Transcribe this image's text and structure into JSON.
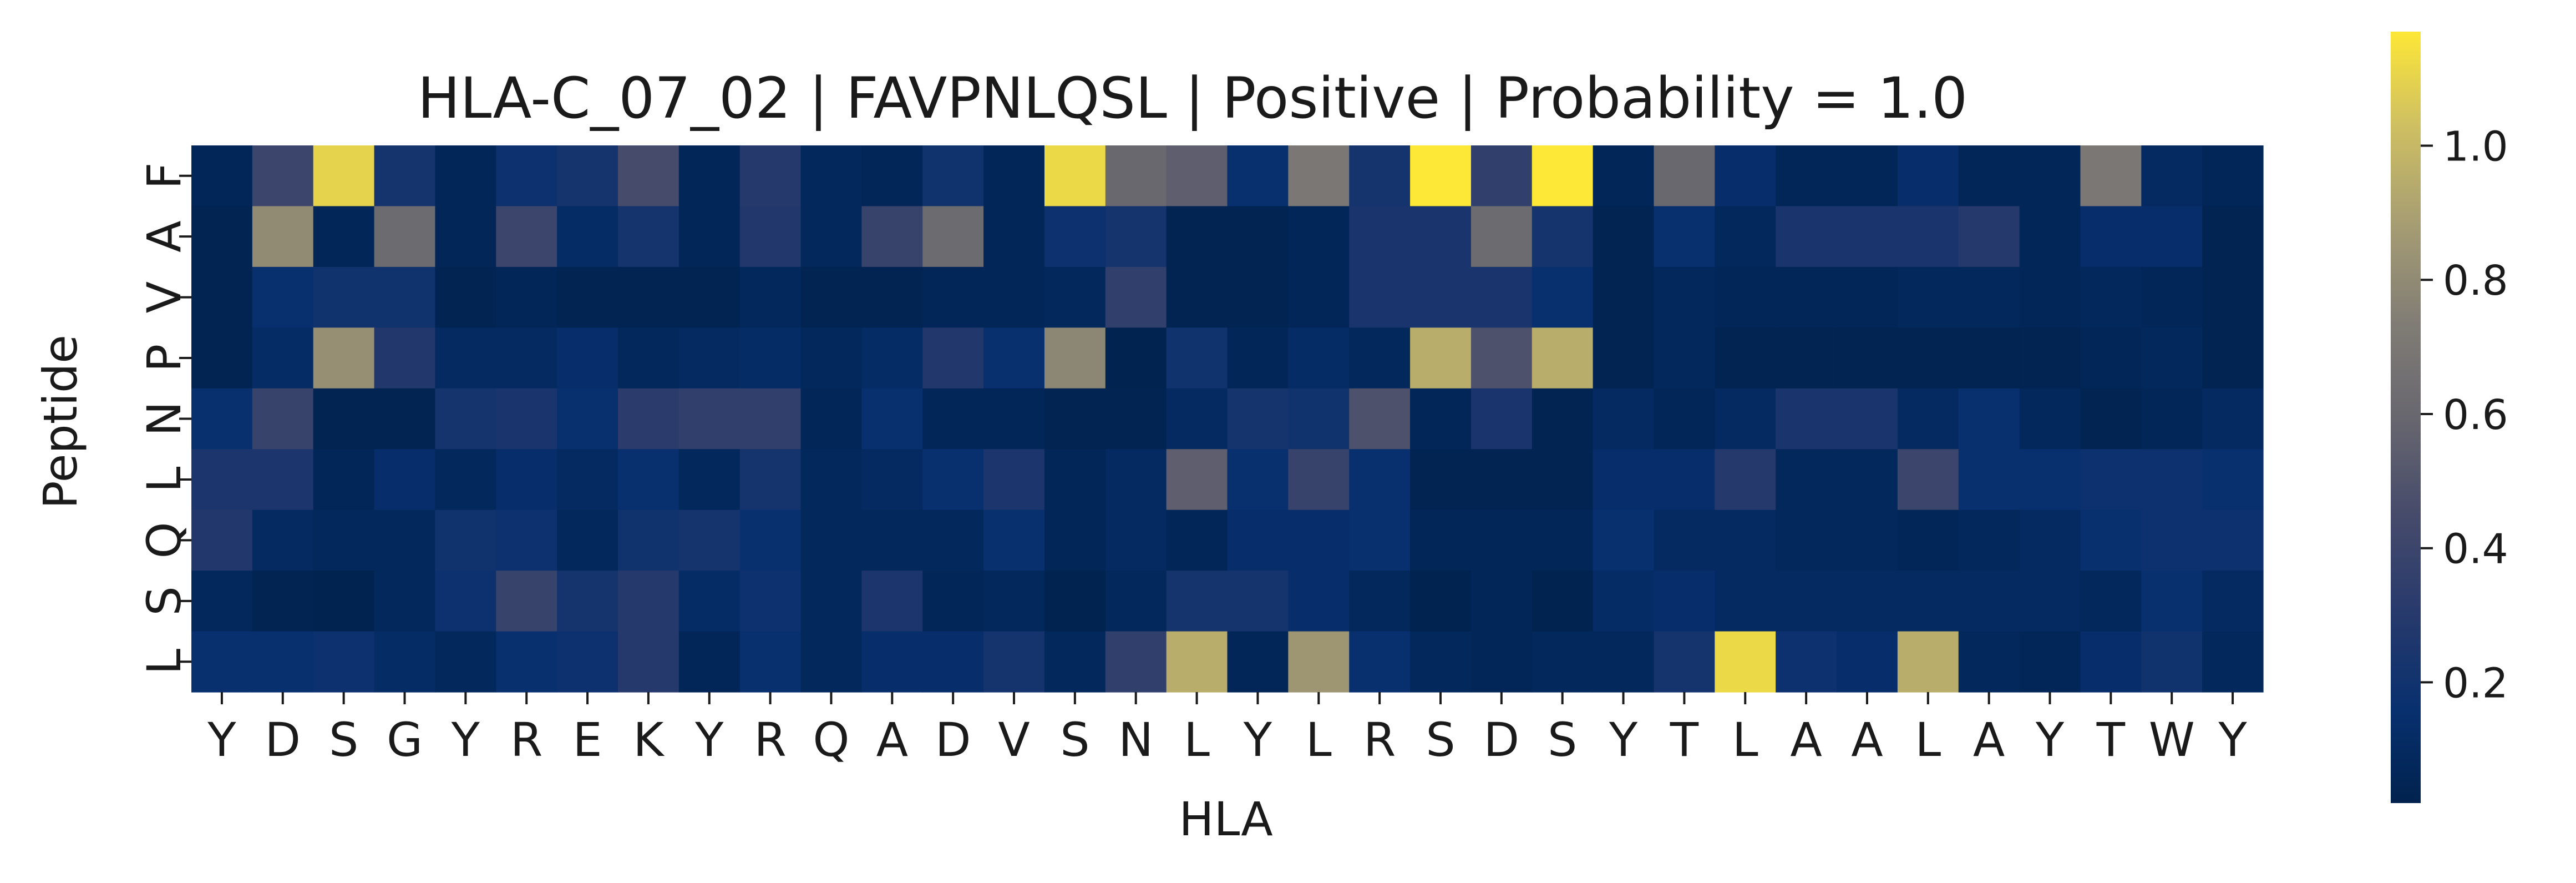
{
  "chart_data": {
    "type": "heatmap",
    "title": "HLA-C_07_02 | FAVPNLQSL | Positive | Probability = 1.0",
    "xlabel": "HLA",
    "ylabel": "Peptide",
    "x_categories": [
      "Y",
      "D",
      "S",
      "G",
      "Y",
      "R",
      "E",
      "K",
      "Y",
      "R",
      "Q",
      "A",
      "D",
      "V",
      "S",
      "N",
      "L",
      "Y",
      "L",
      "R",
      "S",
      "D",
      "S",
      "Y",
      "T",
      "L",
      "A",
      "A",
      "L",
      "A",
      "Y",
      "T",
      "W",
      "Y"
    ],
    "y_categories": [
      "F",
      "A",
      "V",
      "P",
      "N",
      "L",
      "Q",
      "S",
      "L"
    ],
    "colormap": "cividis",
    "vmin": 0.02,
    "vmax": 1.17,
    "colorbar_ticks": [
      "0.2",
      "0.4",
      "0.6",
      "0.8",
      "1.0"
    ],
    "values": [
      [
        0.06,
        0.4,
        1.1,
        0.22,
        0.06,
        0.18,
        0.22,
        0.45,
        0.06,
        0.3,
        0.08,
        0.06,
        0.2,
        0.06,
        1.12,
        0.6,
        0.55,
        0.16,
        0.7,
        0.22,
        1.17,
        0.35,
        1.17,
        0.06,
        0.6,
        0.14,
        0.06,
        0.06,
        0.14,
        0.06,
        0.06,
        0.7,
        0.1,
        0.06
      ],
      [
        0.04,
        0.8,
        0.06,
        0.62,
        0.06,
        0.4,
        0.12,
        0.22,
        0.06,
        0.28,
        0.08,
        0.38,
        0.62,
        0.06,
        0.18,
        0.22,
        0.04,
        0.04,
        0.06,
        0.24,
        0.24,
        0.62,
        0.22,
        0.04,
        0.16,
        0.08,
        0.24,
        0.24,
        0.24,
        0.3,
        0.06,
        0.14,
        0.14,
        0.04
      ],
      [
        0.04,
        0.16,
        0.2,
        0.2,
        0.04,
        0.06,
        0.04,
        0.04,
        0.04,
        0.08,
        0.04,
        0.04,
        0.06,
        0.06,
        0.08,
        0.35,
        0.04,
        0.04,
        0.06,
        0.24,
        0.24,
        0.24,
        0.16,
        0.04,
        0.08,
        0.06,
        0.06,
        0.06,
        0.08,
        0.08,
        0.06,
        0.08,
        0.06,
        0.04
      ],
      [
        0.04,
        0.12,
        0.82,
        0.28,
        0.1,
        0.1,
        0.14,
        0.08,
        0.1,
        0.12,
        0.08,
        0.12,
        0.28,
        0.16,
        0.78,
        0.03,
        0.2,
        0.06,
        0.12,
        0.08,
        0.95,
        0.48,
        0.95,
        0.04,
        0.08,
        0.04,
        0.04,
        0.04,
        0.04,
        0.04,
        0.04,
        0.06,
        0.08,
        0.04
      ],
      [
        0.16,
        0.38,
        0.04,
        0.04,
        0.22,
        0.24,
        0.16,
        0.32,
        0.35,
        0.35,
        0.06,
        0.16,
        0.06,
        0.06,
        0.04,
        0.04,
        0.1,
        0.22,
        0.2,
        0.48,
        0.06,
        0.24,
        0.04,
        0.1,
        0.06,
        0.1,
        0.24,
        0.24,
        0.1,
        0.16,
        0.08,
        0.04,
        0.06,
        0.1
      ],
      [
        0.25,
        0.25,
        0.06,
        0.14,
        0.08,
        0.14,
        0.1,
        0.16,
        0.08,
        0.22,
        0.08,
        0.1,
        0.16,
        0.25,
        0.06,
        0.1,
        0.55,
        0.16,
        0.38,
        0.16,
        0.04,
        0.04,
        0.04,
        0.14,
        0.14,
        0.3,
        0.08,
        0.08,
        0.4,
        0.16,
        0.16,
        0.18,
        0.18,
        0.16
      ],
      [
        0.28,
        0.1,
        0.08,
        0.08,
        0.2,
        0.18,
        0.08,
        0.2,
        0.22,
        0.16,
        0.08,
        0.08,
        0.08,
        0.16,
        0.06,
        0.1,
        0.06,
        0.14,
        0.14,
        0.16,
        0.06,
        0.06,
        0.06,
        0.16,
        0.1,
        0.1,
        0.08,
        0.08,
        0.06,
        0.08,
        0.1,
        0.16,
        0.18,
        0.18
      ],
      [
        0.08,
        0.04,
        0.03,
        0.08,
        0.18,
        0.38,
        0.22,
        0.3,
        0.12,
        0.18,
        0.08,
        0.25,
        0.06,
        0.08,
        0.03,
        0.08,
        0.22,
        0.22,
        0.14,
        0.08,
        0.03,
        0.06,
        0.03,
        0.12,
        0.14,
        0.1,
        0.1,
        0.1,
        0.1,
        0.1,
        0.1,
        0.08,
        0.16,
        0.1
      ],
      [
        0.16,
        0.16,
        0.18,
        0.12,
        0.08,
        0.16,
        0.18,
        0.3,
        0.06,
        0.16,
        0.08,
        0.14,
        0.14,
        0.22,
        0.08,
        0.35,
        0.95,
        0.06,
        0.85,
        0.16,
        0.08,
        0.06,
        0.08,
        0.08,
        0.22,
        1.12,
        0.18,
        0.14,
        0.95,
        0.08,
        0.06,
        0.14,
        0.2,
        0.08
      ]
    ]
  }
}
